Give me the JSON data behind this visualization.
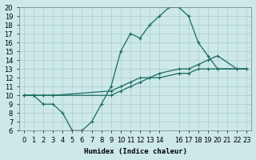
{
  "xlabel": "Humidex (Indice chaleur)",
  "bg_color": "#cce8e8",
  "line_color": "#1a6b60",
  "grid_color": "#aacccc",
  "xlim": [
    -0.5,
    23.5
  ],
  "ylim": [
    6,
    20
  ],
  "xtick_positions": [
    0,
    1,
    2,
    3,
    4,
    5,
    6,
    7,
    8,
    9,
    10,
    11,
    12,
    13,
    14,
    16,
    17,
    18,
    19,
    20,
    21,
    22,
    23
  ],
  "xtick_labels": [
    "0",
    "1",
    "2",
    "3",
    "4",
    "5",
    "6",
    "7",
    "8",
    "9",
    "10",
    "11",
    "12",
    "13",
    "14",
    "16",
    "17",
    "18",
    "19",
    "20",
    "21",
    "22",
    "23"
  ],
  "yticks": [
    6,
    7,
    8,
    9,
    10,
    11,
    12,
    13,
    14,
    15,
    16,
    17,
    18,
    19,
    20
  ],
  "line1_x": [
    0,
    1,
    2,
    3,
    4,
    5,
    6,
    7,
    8,
    9,
    10,
    11,
    12,
    13,
    14,
    15,
    16,
    17,
    18,
    19,
    20,
    22,
    23
  ],
  "line1_y": [
    10,
    10,
    9,
    9,
    8,
    6,
    6,
    7,
    9,
    11,
    15,
    17,
    16.5,
    18,
    19,
    20,
    20,
    19,
    16,
    14.5,
    13,
    13,
    13
  ],
  "line2_x": [
    0,
    1,
    2,
    3,
    9,
    10,
    11,
    12,
    13,
    14,
    16,
    17,
    18,
    19,
    20,
    22,
    23
  ],
  "line2_y": [
    10,
    10,
    10,
    10,
    10.5,
    11,
    11.5,
    12,
    12,
    12.5,
    13,
    13,
    13.5,
    14,
    14.5,
    13,
    13
  ],
  "line3_x": [
    0,
    1,
    2,
    3,
    9,
    10,
    11,
    12,
    13,
    14,
    16,
    17,
    18,
    19,
    20,
    22,
    23
  ],
  "line3_y": [
    10,
    10,
    10,
    10,
    10,
    10.5,
    11,
    11.5,
    12,
    12,
    12.5,
    12.5,
    13,
    13,
    13,
    13,
    13
  ],
  "marker": "+",
  "markersize": 3.5,
  "linewidth": 0.9,
  "font_size": 6.5
}
